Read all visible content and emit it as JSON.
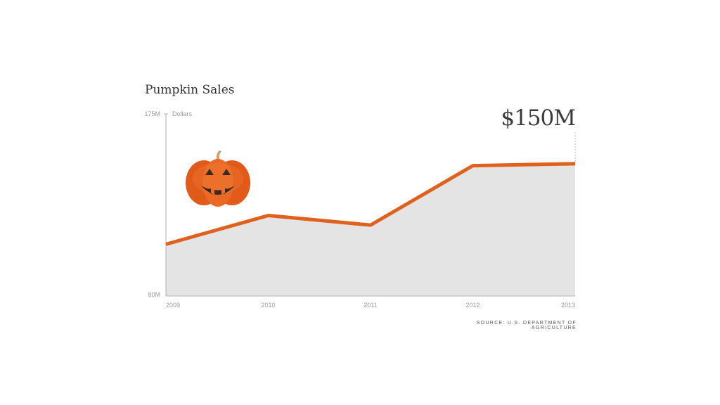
{
  "header": {
    "title": "Pumpkin Sales",
    "highlight_value": "$150M"
  },
  "source": "SOURCE: U.S. DEPARTMENT OF AGRICULTURE",
  "icon": "pumpkin-icon",
  "colors": {
    "line": "#e0601e",
    "area": "#e4e4e4",
    "axis": "#b0b0b0",
    "pumpkin": "#e8641f"
  },
  "chart_data": {
    "type": "area",
    "title": "Pumpkin Sales",
    "ylabel": "Dollars",
    "x": [
      "2009",
      "2010",
      "2011",
      "2012",
      "2013"
    ],
    "series": [
      {
        "values": [
          107,
          122,
          117,
          148,
          149
        ]
      }
    ],
    "ylim": [
      80,
      175
    ],
    "ytick_labels": [
      "80M",
      "175M"
    ],
    "grid": false,
    "annotation": "$150M"
  }
}
